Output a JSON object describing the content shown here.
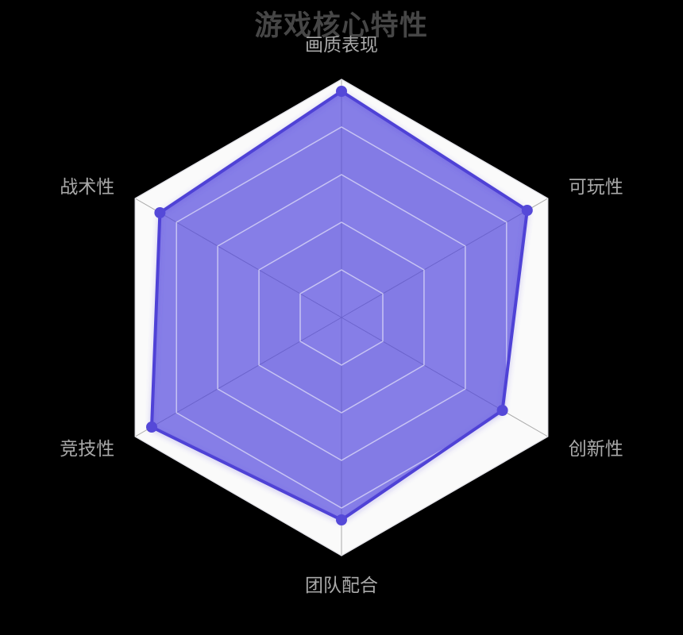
{
  "page": {
    "background": "#000000"
  },
  "chart_data": {
    "type": "radar",
    "title": "游戏核心特性",
    "shape": "hexagon",
    "levels": 5,
    "range": [
      0,
      100
    ],
    "grid": true,
    "legend_position": "none",
    "indicators": [
      {
        "label": "画质表现",
        "max": 100
      },
      {
        "label": "可玩性",
        "max": 100
      },
      {
        "label": "创新性",
        "max": 100
      },
      {
        "label": "团队配合",
        "max": 100
      },
      {
        "label": "竞技性",
        "max": 100
      },
      {
        "label": "战术性",
        "max": 100
      }
    ],
    "series": [
      {
        "values": [
          95,
          90,
          78,
          85,
          92,
          88
        ]
      }
    ]
  },
  "colors": {
    "title": "#464646",
    "axis_label": "#a9a9a9",
    "ring_light": "#fafafa",
    "ring_dark": "#f0f0f4",
    "ring_line": "rgba(255,255,255,0.55)",
    "outer_border": "#e2e2e8",
    "spoke": "#aaaaaa",
    "series_fill": "rgba(75,62,222,0.66)",
    "series_stroke": "#4f43d6",
    "series_point": "#5549d8"
  }
}
